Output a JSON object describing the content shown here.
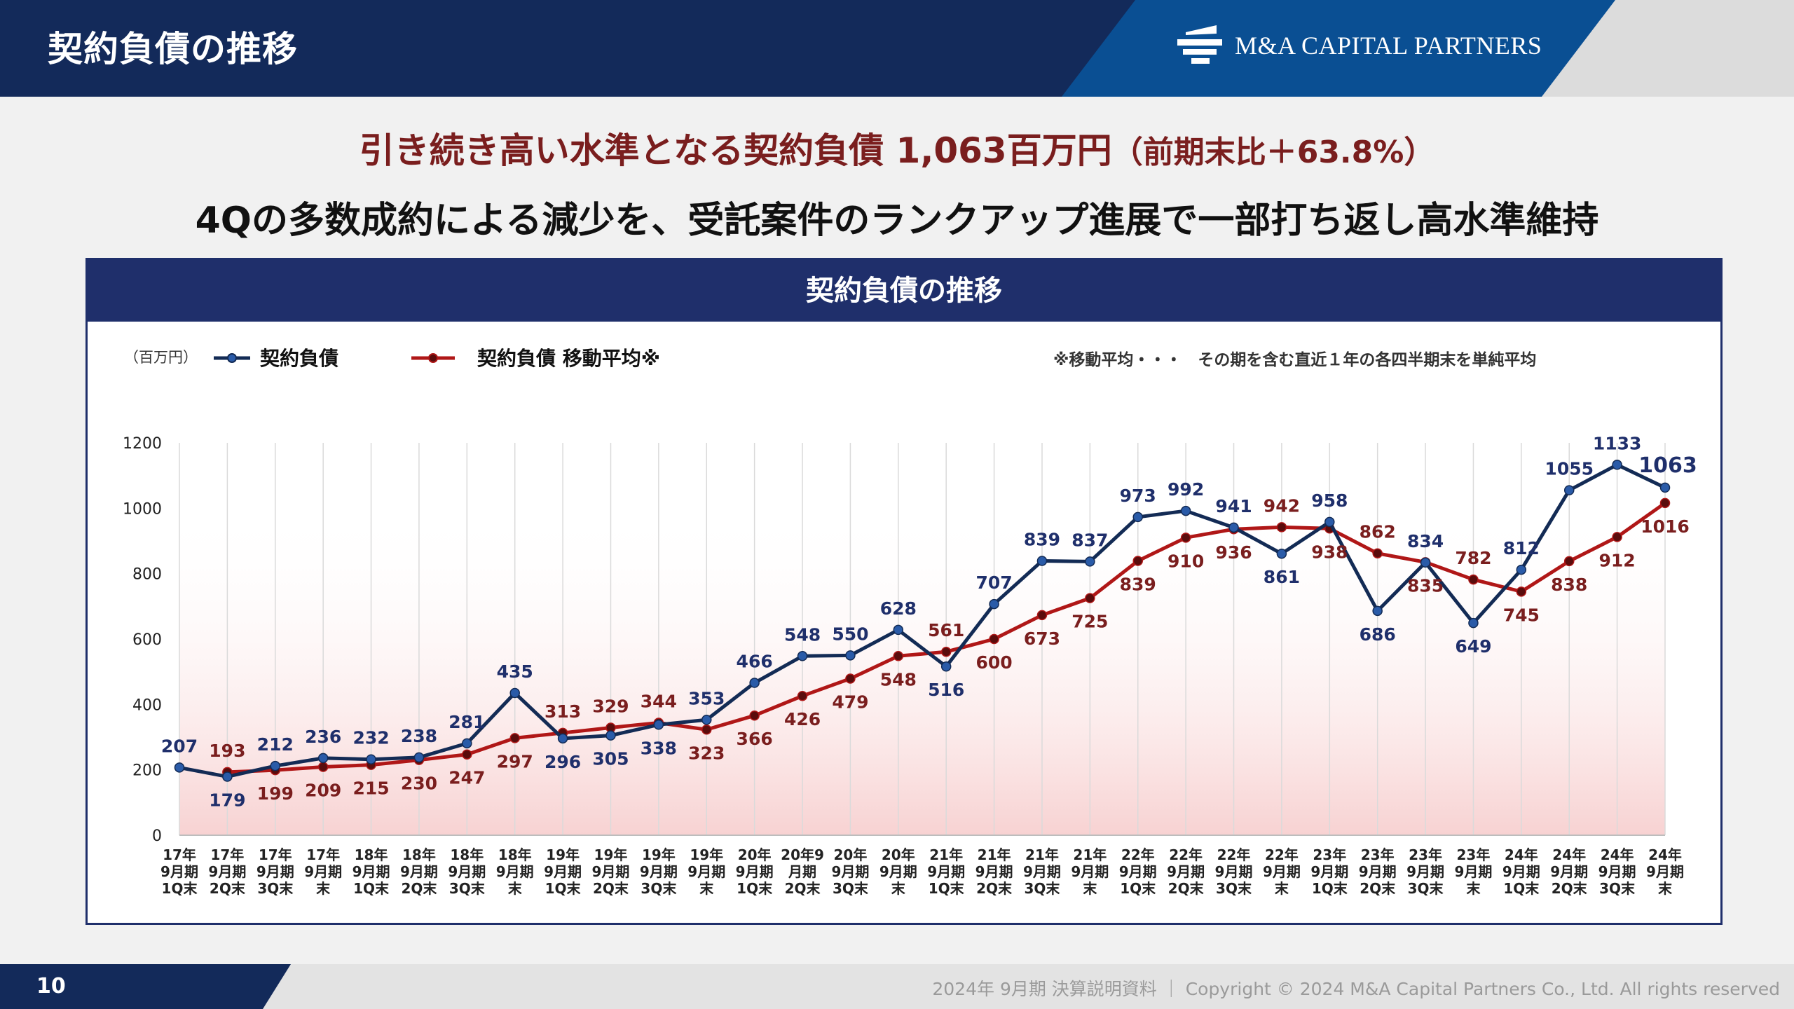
{
  "header": {
    "title": "契約負債の推移",
    "logo_text": "M&A CAPITAL PARTNERS"
  },
  "headline": {
    "main": "引き続き高い水準となる契約負債 1,063百万円",
    "sub": "（前期末比＋63.8%）",
    "line2": "4Qの多数成約による減少を、受託案件のランクアップ進展で一部打ち返し高水準維持"
  },
  "footer": {
    "page_number": "10",
    "text": "2024年 9月期 決算説明資料 ｜ Copyright © 2024 M&A Capital Partners Co., Ltd. All rights reserved"
  },
  "colors": {
    "navy": "#132a5a",
    "blue": "#0a4f93",
    "series1": "#132b55",
    "series2": "#b01717",
    "label1": "#1f2f6b",
    "label2": "#7a1e1e"
  },
  "chart_data": {
    "type": "line",
    "title": "契約負債の推移",
    "unit_label": "（百万円）",
    "note": "※移動平均・・・　その期を含む直近１年の各四半期末を単純平均",
    "ylim": [
      0,
      1200
    ],
    "yticks": [
      0,
      200,
      400,
      600,
      800,
      1000,
      1200
    ],
    "grid": "vertical",
    "legend_position": "top-left",
    "categories": [
      [
        "17年",
        "9月期",
        "1Q末"
      ],
      [
        "17年",
        "9月期",
        "2Q末"
      ],
      [
        "17年",
        "9月期",
        "3Q末"
      ],
      [
        "17年",
        "9月期",
        "末"
      ],
      [
        "18年",
        "9月期",
        "1Q末"
      ],
      [
        "18年",
        "9月期",
        "2Q末"
      ],
      [
        "18年",
        "9月期",
        "3Q末"
      ],
      [
        "18年",
        "9月期",
        "末"
      ],
      [
        "19年",
        "9月期",
        "1Q末"
      ],
      [
        "19年",
        "9月期",
        "2Q末"
      ],
      [
        "19年",
        "9月期",
        "3Q末"
      ],
      [
        "19年",
        "9月期",
        "末"
      ],
      [
        "20年",
        "9月期",
        "1Q末"
      ],
      [
        "20年9",
        "月期",
        "2Q末"
      ],
      [
        "20年",
        "9月期",
        "3Q末"
      ],
      [
        "20年",
        "9月期",
        "末"
      ],
      [
        "21年",
        "9月期",
        "1Q末"
      ],
      [
        "21年",
        "9月期",
        "2Q末"
      ],
      [
        "21年",
        "9月期",
        "3Q末"
      ],
      [
        "21年",
        "9月期",
        "末"
      ],
      [
        "22年",
        "9月期",
        "1Q末"
      ],
      [
        "22年",
        "9月期",
        "2Q末"
      ],
      [
        "22年",
        "9月期",
        "3Q末"
      ],
      [
        "22年",
        "9月期",
        "末"
      ],
      [
        "23年",
        "9月期",
        "1Q末"
      ],
      [
        "23年",
        "9月期",
        "2Q末"
      ],
      [
        "23年",
        "9月期",
        "3Q末"
      ],
      [
        "23年",
        "9月期",
        "末"
      ],
      [
        "24年",
        "9月期",
        "1Q末"
      ],
      [
        "24年",
        "9月期",
        "2Q末"
      ],
      [
        "24年",
        "9月期",
        "3Q末"
      ],
      [
        "24年",
        "9月期",
        "末"
      ]
    ],
    "series": [
      {
        "name": "契約負債",
        "color": "#132b55",
        "label_color": "#1f2f6b",
        "values": [
          207,
          179,
          212,
          236,
          232,
          238,
          281,
          435,
          296,
          305,
          338,
          353,
          466,
          548,
          550,
          628,
          516,
          707,
          839,
          837,
          973,
          992,
          941,
          861,
          958,
          686,
          834,
          649,
          812,
          1055,
          1133,
          1063
        ],
        "labels": [
          "207",
          "179",
          "212",
          "236",
          "232",
          "238",
          "281",
          "435",
          "296",
          "305",
          "338",
          "353",
          "466",
          "548",
          "550",
          "628",
          "516",
          "707",
          "839",
          "837",
          "973",
          "992",
          "941",
          "861",
          "958",
          "686",
          "834",
          "649",
          "812",
          "1055",
          "1133",
          "1063"
        ]
      },
      {
        "name": "契約負債 移動平均※",
        "color": "#b01717",
        "label_color": "#7a1e1e",
        "values": [
          null,
          193,
          199,
          209,
          215,
          230,
          247,
          297,
          313,
          329,
          344,
          323,
          366,
          426,
          479,
          548,
          561,
          600,
          673,
          725,
          839,
          910,
          936,
          942,
          938,
          862,
          835,
          782,
          745,
          838,
          912,
          1016
        ],
        "labels": [
          "",
          "193",
          "199",
          "209",
          "215",
          "230",
          "247",
          "297",
          "313",
          "329",
          "344",
          "323",
          "366",
          "426",
          "479",
          "548",
          "561",
          "600",
          "673",
          "725",
          "839",
          "910",
          "936",
          "942",
          "938",
          "862",
          "835",
          "782",
          "745",
          "838",
          "912",
          "1016"
        ]
      }
    ]
  }
}
